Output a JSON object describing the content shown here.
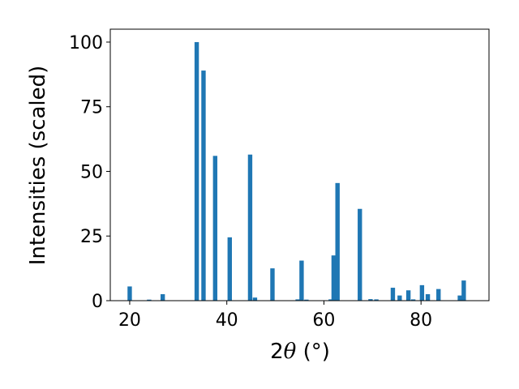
{
  "chart_data": {
    "type": "bar",
    "title": "",
    "xlabel_prefix": "2",
    "xlabel_symbol": "θ",
    "xlabel_unit": " (°)",
    "ylabel": "Intensities (scaled)",
    "xlim": [
      16,
      94
    ],
    "ylim": [
      0,
      105
    ],
    "xticks": [
      20,
      40,
      60,
      80
    ],
    "yticks": [
      0,
      25,
      50,
      75,
      100
    ],
    "grid": false,
    "bar_color": "#1f77b4",
    "bar_width": 0.9,
    "series": [
      {
        "x": [
          20.0,
          24.0,
          26.8,
          33.8,
          35.2,
          37.6,
          40.6,
          44.8,
          45.8,
          49.4,
          54.6,
          55.4,
          56.4,
          61.4,
          62.0,
          62.8,
          67.4,
          69.6,
          70.8,
          74.2,
          75.6,
          77.4,
          78.4,
          80.2,
          81.4,
          83.6,
          88.0,
          88.8
        ],
        "values": [
          5.5,
          0.4,
          2.5,
          100,
          89,
          56,
          24.5,
          56.5,
          1.2,
          12.5,
          0.5,
          15.5,
          0.4,
          0.5,
          17.5,
          45.5,
          35.5,
          0.6,
          0.5,
          5.0,
          2.0,
          4.0,
          0.5,
          6.0,
          2.5,
          4.5,
          2.0,
          7.8
        ]
      }
    ]
  }
}
